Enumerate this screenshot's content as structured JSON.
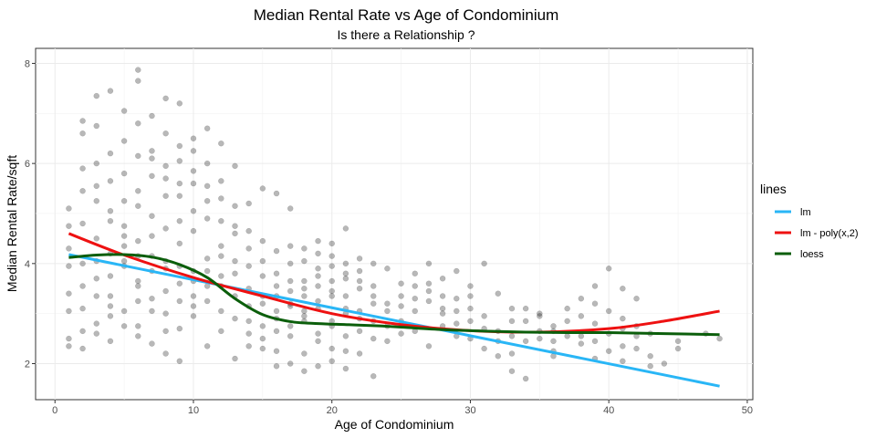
{
  "chart_data": {
    "type": "scatter",
    "title": "Median Rental Rate vs Age of Condominium",
    "subtitle": "Is there a Relationship ?",
    "xlabel": "Age of Condominium",
    "ylabel": "Median Rental Rate/sqft",
    "xlim": [
      -1.4,
      50.4
    ],
    "ylim": [
      1.28,
      8.3
    ],
    "x_ticks": [
      0,
      10,
      20,
      30,
      40,
      50
    ],
    "y_ticks": [
      2,
      4,
      6,
      8
    ],
    "grid": true,
    "point_color": "#000000",
    "point_opacity": 0.28,
    "points": [
      [
        6,
        7.87
      ],
      [
        6,
        7.65
      ],
      [
        4,
        7.45
      ],
      [
        3,
        7.35
      ],
      [
        8,
        7.3
      ],
      [
        9,
        7.2
      ],
      [
        5,
        7.05
      ],
      [
        7,
        6.95
      ],
      [
        2,
        6.85
      ],
      [
        3,
        6.75
      ],
      [
        11,
        6.7
      ],
      [
        6,
        6.8
      ],
      [
        8,
        6.6
      ],
      [
        10,
        6.5
      ],
      [
        12,
        6.4
      ],
      [
        9,
        6.35
      ],
      [
        4,
        6.2
      ],
      [
        7,
        6.1
      ],
      [
        11,
        6.0
      ],
      [
        13,
        5.95
      ],
      [
        2,
        5.9
      ],
      [
        5,
        5.8
      ],
      [
        8,
        5.7
      ],
      [
        10,
        5.6
      ],
      [
        3,
        5.55
      ],
      [
        6,
        5.45
      ],
      [
        9,
        5.35
      ],
      [
        12,
        5.3
      ],
      [
        14,
        5.2
      ],
      [
        1,
        5.1
      ],
      [
        4,
        5.05
      ],
      [
        7,
        4.95
      ],
      [
        11,
        4.9
      ],
      [
        15,
        5.5
      ],
      [
        16,
        5.4
      ],
      [
        17,
        5.1
      ],
      [
        2,
        4.8
      ],
      [
        5,
        4.75
      ],
      [
        8,
        4.7
      ],
      [
        10,
        4.65
      ],
      [
        13,
        4.6
      ],
      [
        3,
        4.5
      ],
      [
        6,
        4.45
      ],
      [
        9,
        4.4
      ],
      [
        12,
        4.35
      ],
      [
        14,
        4.3
      ],
      [
        18,
        4.3
      ],
      [
        20,
        4.4
      ],
      [
        21,
        4.7
      ],
      [
        19,
        4.2
      ],
      [
        1,
        4.3
      ],
      [
        4,
        4.2
      ],
      [
        7,
        4.15
      ],
      [
        11,
        4.1
      ],
      [
        15,
        4.05
      ],
      [
        17,
        4.0
      ],
      [
        22,
        4.1
      ],
      [
        23,
        4.0
      ],
      [
        2,
        4.0
      ],
      [
        5,
        3.95
      ],
      [
        8,
        3.9
      ],
      [
        10,
        3.85
      ],
      [
        13,
        3.8
      ],
      [
        16,
        3.8
      ],
      [
        19,
        3.75
      ],
      [
        21,
        3.7
      ],
      [
        24,
        3.9
      ],
      [
        26,
        3.8
      ],
      [
        27,
        4.0
      ],
      [
        28,
        3.7
      ],
      [
        29,
        3.85
      ],
      [
        31,
        4.0
      ],
      [
        3,
        3.7
      ],
      [
        6,
        3.65
      ],
      [
        9,
        3.6
      ],
      [
        12,
        3.55
      ],
      [
        14,
        3.5
      ],
      [
        18,
        3.5
      ],
      [
        20,
        3.45
      ],
      [
        22,
        3.5
      ],
      [
        25,
        3.6
      ],
      [
        27,
        3.45
      ],
      [
        30,
        3.55
      ],
      [
        32,
        3.4
      ],
      [
        38,
        3.3
      ],
      [
        39,
        3.55
      ],
      [
        40,
        3.9
      ],
      [
        41,
        3.5
      ],
      [
        42,
        3.3
      ],
      [
        1,
        3.4
      ],
      [
        4,
        3.35
      ],
      [
        7,
        3.3
      ],
      [
        11,
        3.25
      ],
      [
        15,
        3.2
      ],
      [
        17,
        3.15
      ],
      [
        19,
        3.1
      ],
      [
        21,
        3.1
      ],
      [
        23,
        3.2
      ],
      [
        26,
        3.05
      ],
      [
        28,
        3.1
      ],
      [
        33,
        3.1
      ],
      [
        35,
        3.0
      ],
      [
        37,
        3.1
      ],
      [
        2,
        3.1
      ],
      [
        5,
        3.05
      ],
      [
        8,
        3.0
      ],
      [
        10,
        2.95
      ],
      [
        13,
        2.9
      ],
      [
        16,
        2.9
      ],
      [
        18,
        2.85
      ],
      [
        20,
        2.85
      ],
      [
        22,
        2.9
      ],
      [
        24,
        2.75
      ],
      [
        29,
        2.8
      ],
      [
        31,
        2.95
      ],
      [
        34,
        2.85
      ],
      [
        36,
        2.75
      ],
      [
        39,
        2.8
      ],
      [
        41,
        2.9
      ],
      [
        43,
        2.6
      ],
      [
        3,
        2.8
      ],
      [
        6,
        2.75
      ],
      [
        9,
        2.7
      ],
      [
        12,
        2.65
      ],
      [
        14,
        2.6
      ],
      [
        17,
        2.55
      ],
      [
        19,
        2.6
      ],
      [
        21,
        2.55
      ],
      [
        23,
        2.5
      ],
      [
        25,
        2.6
      ],
      [
        30,
        2.5
      ],
      [
        32,
        2.45
      ],
      [
        35,
        2.5
      ],
      [
        38,
        2.4
      ],
      [
        40,
        2.6
      ],
      [
        42,
        2.3
      ],
      [
        1,
        2.5
      ],
      [
        4,
        2.45
      ],
      [
        7,
        2.4
      ],
      [
        11,
        2.35
      ],
      [
        15,
        2.3
      ],
      [
        16,
        2.25
      ],
      [
        18,
        2.2
      ],
      [
        20,
        2.3
      ],
      [
        22,
        2.2
      ],
      [
        33,
        2.2
      ],
      [
        36,
        2.25
      ],
      [
        39,
        2.1
      ],
      [
        41,
        2.05
      ],
      [
        43,
        1.95
      ],
      [
        48,
        2.5
      ],
      [
        2,
        2.3
      ],
      [
        8,
        2.2
      ],
      [
        13,
        2.1
      ],
      [
        17,
        2.0
      ],
      [
        19,
        1.95
      ],
      [
        21,
        1.9
      ],
      [
        23,
        1.75
      ],
      [
        33,
        1.85
      ],
      [
        34,
        1.7
      ],
      [
        36,
        2.15
      ],
      [
        45,
        2.45
      ],
      [
        47,
        2.6
      ],
      [
        6,
        2.55
      ],
      [
        9,
        2.05
      ],
      [
        14,
        2.35
      ],
      [
        16,
        1.95
      ],
      [
        18,
        1.85
      ],
      [
        20,
        2.05
      ],
      [
        15,
        2.5
      ],
      [
        16,
        2.65
      ],
      [
        17,
        2.75
      ],
      [
        18,
        2.95
      ],
      [
        19,
        3.25
      ],
      [
        20,
        3.35
      ],
      [
        21,
        3.0
      ],
      [
        22,
        2.65
      ],
      [
        15,
        3.35
      ],
      [
        16,
        3.55
      ],
      [
        17,
        3.65
      ],
      [
        18,
        3.05
      ],
      [
        19,
        2.45
      ],
      [
        20,
        2.75
      ],
      [
        21,
        2.25
      ],
      [
        14,
        2.85
      ],
      [
        12,
        3.05
      ],
      [
        10,
        3.15
      ],
      [
        8,
        3.45
      ],
      [
        6,
        3.55
      ],
      [
        4,
        3.75
      ],
      [
        3,
        4.05
      ],
      [
        5,
        4.35
      ],
      [
        7,
        4.55
      ],
      [
        9,
        4.85
      ],
      [
        10,
        5.05
      ],
      [
        11,
        5.55
      ],
      [
        12,
        5.65
      ],
      [
        13,
        4.75
      ],
      [
        5,
        5.25
      ],
      [
        4,
        5.65
      ],
      [
        3,
        6.0
      ],
      [
        2,
        6.6
      ],
      [
        7,
        6.25
      ],
      [
        8,
        5.95
      ],
      [
        9,
        6.05
      ],
      [
        10,
        6.25
      ],
      [
        6,
        5.15
      ],
      [
        5,
        4.05
      ],
      [
        4,
        3.15
      ],
      [
        3,
        2.6
      ],
      [
        2,
        2.65
      ],
      [
        26,
        3.3
      ],
      [
        27,
        3.6
      ],
      [
        28,
        3.35
      ],
      [
        29,
        3.05
      ],
      [
        30,
        3.1
      ],
      [
        31,
        2.7
      ],
      [
        32,
        2.65
      ],
      [
        33,
        2.85
      ],
      [
        34,
        3.1
      ],
      [
        35,
        2.95
      ],
      [
        36,
        2.65
      ],
      [
        37,
        2.55
      ],
      [
        38,
        2.95
      ],
      [
        39,
        3.2
      ],
      [
        40,
        3.05
      ],
      [
        41,
        2.7
      ],
      [
        42,
        2.55
      ],
      [
        43,
        2.15
      ],
      [
        45,
        2.3
      ],
      [
        24,
        3.2
      ],
      [
        25,
        3.15
      ],
      [
        23,
        3.55
      ],
      [
        22,
        3.85
      ],
      [
        21,
        4.0
      ],
      [
        20,
        4.15
      ],
      [
        19,
        4.45
      ],
      [
        18,
        3.65
      ],
      [
        17,
        3.45
      ],
      [
        16,
        3.05
      ],
      [
        15,
        2.75
      ],
      [
        14,
        3.15
      ],
      [
        13,
        3.35
      ],
      [
        12,
        3.75
      ],
      [
        11,
        3.55
      ],
      [
        10,
        3.35
      ],
      [
        9,
        3.95
      ],
      [
        8,
        4.05
      ],
      [
        7,
        3.85
      ],
      [
        6,
        4.15
      ],
      [
        5,
        4.55
      ],
      [
        4,
        4.85
      ],
      [
        3,
        5.25
      ],
      [
        2,
        5.45
      ],
      [
        1,
        4.75
      ],
      [
        1,
        3.95
      ],
      [
        1,
        3.05
      ],
      [
        1,
        2.35
      ],
      [
        2,
        3.55
      ],
      [
        3,
        3.35
      ],
      [
        4,
        2.95
      ],
      [
        5,
        2.75
      ],
      [
        6,
        3.25
      ],
      [
        7,
        3.05
      ],
      [
        8,
        2.65
      ],
      [
        9,
        3.25
      ],
      [
        10,
        3.65
      ],
      [
        11,
        3.85
      ],
      [
        12,
        4.15
      ],
      [
        13,
        4.05
      ],
      [
        14,
        3.95
      ],
      [
        15,
        3.75
      ],
      [
        16,
        3.35
      ],
      [
        17,
        3.2
      ],
      [
        18,
        3.35
      ],
      [
        19,
        3.55
      ],
      [
        20,
        3.65
      ],
      [
        21,
        3.35
      ],
      [
        22,
        3.05
      ],
      [
        23,
        2.85
      ],
      [
        24,
        2.45
      ],
      [
        25,
        2.85
      ],
      [
        26,
        2.65
      ],
      [
        27,
        2.35
      ],
      [
        28,
        2.75
      ],
      [
        29,
        2.55
      ],
      [
        30,
        2.85
      ],
      [
        31,
        2.3
      ],
      [
        32,
        2.15
      ],
      [
        33,
        2.55
      ],
      [
        34,
        2.45
      ],
      [
        35,
        2.65
      ],
      [
        36,
        2.45
      ],
      [
        37,
        2.85
      ],
      [
        38,
        2.55
      ],
      [
        39,
        2.45
      ],
      [
        40,
        2.25
      ],
      [
        41,
        2.35
      ],
      [
        42,
        2.75
      ],
      [
        44,
        2.0
      ],
      [
        5,
        6.45
      ],
      [
        6,
        6.15
      ],
      [
        7,
        5.75
      ],
      [
        8,
        5.35
      ],
      [
        9,
        5.6
      ],
      [
        10,
        5.85
      ],
      [
        11,
        5.25
      ],
      [
        12,
        4.85
      ],
      [
        13,
        5.15
      ],
      [
        14,
        4.65
      ],
      [
        15,
        4.45
      ],
      [
        16,
        4.25
      ],
      [
        17,
        4.35
      ],
      [
        18,
        4.05
      ],
      [
        19,
        3.9
      ],
      [
        20,
        3.95
      ],
      [
        21,
        3.8
      ],
      [
        22,
        3.65
      ],
      [
        23,
        3.35
      ],
      [
        24,
        3.05
      ],
      [
        25,
        3.35
      ],
      [
        26,
        3.55
      ],
      [
        27,
        3.25
      ],
      [
        28,
        3.0
      ],
      [
        29,
        3.3
      ],
      [
        30,
        3.35
      ]
    ],
    "series": [
      {
        "name": "lm",
        "color": "#29B6F6",
        "x": [
          1,
          48
        ],
        "y": [
          4.18,
          1.55
        ]
      },
      {
        "name": "lm - poly(x,2)",
        "color": "#EE1111",
        "x": [
          1,
          5,
          10,
          15,
          20,
          25,
          30,
          35,
          40,
          44,
          48
        ],
        "y": [
          4.6,
          4.17,
          3.72,
          3.35,
          3.0,
          2.78,
          2.66,
          2.63,
          2.7,
          2.85,
          3.05
        ]
      },
      {
        "name": "loess",
        "color": "#0B5E0B",
        "x": [
          1,
          3,
          5,
          7,
          9,
          11,
          13,
          15,
          17,
          19,
          21,
          23,
          25,
          28,
          31,
          34,
          37,
          40,
          44,
          48
        ],
        "y": [
          4.12,
          4.17,
          4.18,
          4.13,
          3.98,
          3.72,
          3.3,
          2.98,
          2.84,
          2.8,
          2.78,
          2.76,
          2.73,
          2.68,
          2.65,
          2.63,
          2.62,
          2.62,
          2.6,
          2.58
        ]
      }
    ],
    "legend": {
      "title": "lines",
      "position": "right"
    }
  }
}
